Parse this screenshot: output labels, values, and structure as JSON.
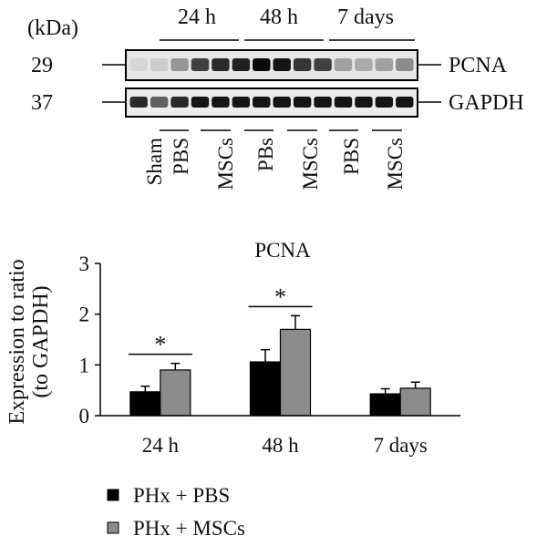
{
  "blot": {
    "unit_label": "(kDa)",
    "time_labels": [
      "24 h",
      "48 h",
      "7 days"
    ],
    "markers": [
      {
        "mw": "29",
        "protein": "PCNA"
      },
      {
        "mw": "37",
        "protein": "GAPDH"
      }
    ],
    "lane_labels": [
      "Sham",
      "PBS",
      "MSCs",
      "PBs",
      "MSCs",
      "PBS",
      "MSCs"
    ],
    "pcna_band_intensity": [
      0.05,
      0.1,
      0.35,
      0.75,
      0.85,
      0.9,
      1.0,
      0.95,
      0.8,
      0.75,
      0.3,
      0.25,
      0.3,
      0.4
    ],
    "gapdh_band_intensity": [
      0.85,
      0.6,
      0.85,
      0.95,
      0.95,
      0.95,
      0.95,
      0.95,
      0.95,
      0.95,
      0.95,
      0.95,
      0.95,
      0.95
    ]
  },
  "chart_data": {
    "type": "bar",
    "title": "PCNA",
    "ylabel": "Expression to ratio (to GAPDH)",
    "ylabel_lines": [
      "Expression to ratio",
      "(to GAPDH)"
    ],
    "xlabel": "",
    "categories": [
      "24 h",
      "48 h",
      "7 days"
    ],
    "ylim": [
      0,
      3
    ],
    "yticks": [
      0,
      1,
      2,
      3
    ],
    "series": [
      {
        "name": "PHx + PBS",
        "color": "#000000",
        "values": [
          0.47,
          1.06,
          0.43
        ],
        "errors": [
          0.11,
          0.24,
          0.1
        ]
      },
      {
        "name": "PHx + MSCs",
        "color": "#8c8c8c",
        "values": [
          0.9,
          1.7,
          0.54
        ],
        "errors": [
          0.13,
          0.27,
          0.12
        ]
      }
    ],
    "significance": [
      {
        "category": "24 h",
        "label": "*"
      },
      {
        "category": "48 h",
        "label": "*"
      }
    ],
    "legend_position": "bottom-left",
    "grid": false
  }
}
